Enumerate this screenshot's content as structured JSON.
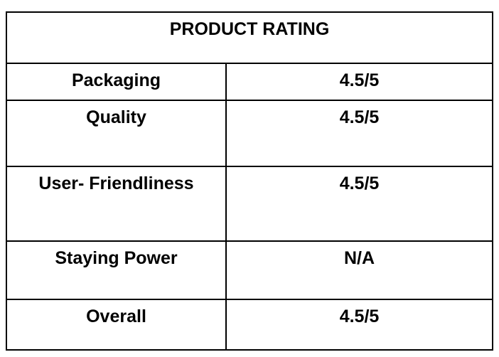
{
  "header": {
    "title": "PRODUCT RATING"
  },
  "table": {
    "rows": [
      [
        "Packaging",
        "4.5/5"
      ],
      [
        "Quality",
        "4.5/5"
      ],
      [
        "User- Friendliness",
        "4.5/5"
      ],
      [
        "Staying Power",
        "N/A"
      ],
      [
        "Overall",
        "4.5/5"
      ]
    ]
  }
}
